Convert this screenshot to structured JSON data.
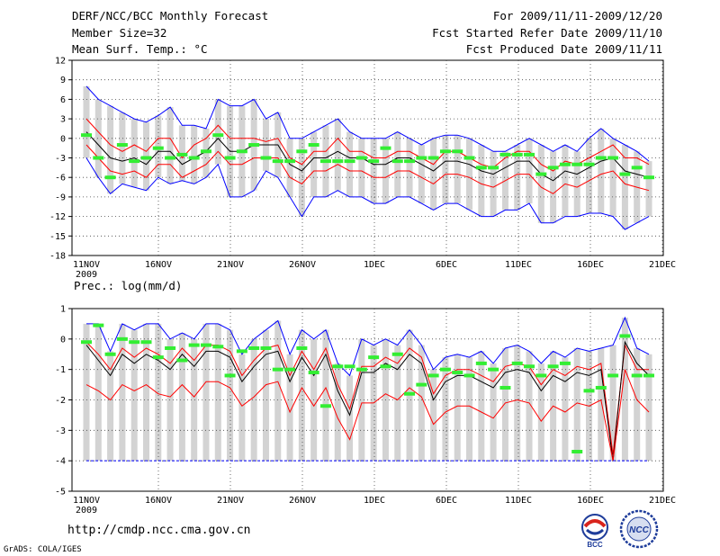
{
  "header": {
    "title": "DERF/NCC/BCC Monthly Forecast",
    "member_size": "Member Size=32",
    "variable": "Mean Surf. Temp.: °C",
    "period": "For 2009/11/11-2009/12/20",
    "started": "Fcst Started Refer Date 2009/11/10",
    "produced": "Fcst Produced Date 2009/11/11"
  },
  "footer": {
    "url": "http://cmdp.ncc.cma.gov.cn",
    "grads": "GrADS: COLA/IGES",
    "logo_bcc": "BCC",
    "logo_ncc": "NCC"
  },
  "colors": {
    "max": "#0000ff",
    "min": "#0000ff",
    "mean": "#000000",
    "band": "#ff0000",
    "obs": "#33ee33",
    "box": "#d3d3d3"
  },
  "chart_data": [
    {
      "type": "line",
      "title": "Mean Surf. Temp.: °C",
      "x_tick_labels": [
        "11NOV",
        "16NOV",
        "21NOV",
        "26NOV",
        "1DEC",
        "6DEC",
        "11DEC",
        "16DEC",
        "21DEC"
      ],
      "x_year_label": "2009",
      "ylim": [
        -18,
        12
      ],
      "yticks": [
        12,
        9,
        6,
        3,
        0,
        -3,
        -6,
        -9,
        -12,
        -15,
        -18
      ],
      "series": [
        {
          "name": "max",
          "color": "#0000ff",
          "values": [
            8,
            6,
            5,
            4,
            3,
            2.5,
            3.5,
            4.8,
            2,
            2,
            1.5,
            6,
            5,
            5,
            6,
            3,
            4,
            0,
            0,
            1,
            2,
            3,
            1,
            0,
            0,
            0,
            1,
            0,
            -1,
            0,
            0.5,
            0.5,
            0,
            -1,
            -2,
            -2,
            -1,
            0,
            -1,
            -2,
            -1,
            -2,
            0,
            1.5,
            0,
            -1,
            -2,
            -3.5
          ]
        },
        {
          "name": "upper",
          "color": "#ff0000",
          "values": [
            3,
            1,
            -1,
            -2,
            -1,
            -2,
            0,
            0,
            -3,
            -1,
            0,
            2,
            0,
            0,
            0,
            -0.5,
            0,
            -3,
            -4,
            -2,
            -2,
            0,
            -2,
            -2,
            -3,
            -3,
            -2,
            -2,
            -3,
            -4,
            -2,
            -2,
            -3,
            -4,
            -4.5,
            -3,
            -2,
            -2,
            -4,
            -5,
            -3.5,
            -4,
            -3,
            -2,
            -1,
            -3,
            -3,
            -4
          ]
        },
        {
          "name": "mean",
          "color": "#000000",
          "values": [
            1,
            -1,
            -3,
            -3.5,
            -3,
            -4,
            -2,
            -2,
            -4,
            -3,
            -2,
            0,
            -2,
            -2,
            -1,
            -1,
            -1,
            -4,
            -5,
            -3,
            -3,
            -2,
            -3,
            -3,
            -4,
            -4,
            -3,
            -3,
            -4,
            -5,
            -3.5,
            -3.5,
            -4,
            -5,
            -5.5,
            -4.5,
            -3.5,
            -3.5,
            -5.5,
            -6.5,
            -5,
            -5.5,
            -4.5,
            -3.5,
            -3,
            -5,
            -5.5,
            -6
          ]
        },
        {
          "name": "lower",
          "color": "#ff0000",
          "values": [
            -1,
            -3,
            -5,
            -5.5,
            -5,
            -6,
            -4,
            -4,
            -6,
            -5,
            -4,
            -2,
            -4,
            -4,
            -3,
            -3,
            -3,
            -6,
            -7,
            -5,
            -5,
            -4,
            -5,
            -5,
            -6,
            -6,
            -5,
            -5,
            -6,
            -7,
            -5.5,
            -5.5,
            -6,
            -7,
            -7.5,
            -6.5,
            -5.5,
            -5.5,
            -7.5,
            -8.5,
            -7,
            -7.5,
            -6.5,
            -5.5,
            -5,
            -7,
            -7.5,
            -8
          ]
        },
        {
          "name": "min",
          "color": "#0000ff",
          "values": [
            -3,
            -6,
            -8.5,
            -7,
            -7.5,
            -8,
            -6,
            -7,
            -6.5,
            -7,
            -6,
            -4,
            -9,
            -9,
            -8,
            -5,
            -6,
            -9,
            -12,
            -9,
            -9,
            -8,
            -9,
            -9,
            -10,
            -10,
            -9,
            -9,
            -10,
            -11,
            -10,
            -10,
            -11,
            -12,
            -12,
            -11,
            -11,
            -10,
            -13,
            -13,
            -12,
            -12,
            -11.5,
            -11.5,
            -12,
            -14,
            -13,
            -12
          ]
        },
        {
          "name": "observed",
          "color": "#33ee33",
          "values": [
            0.5,
            -3,
            -6,
            -1,
            -3.5,
            -3,
            -1.5,
            -3,
            -2.5,
            -3,
            -2,
            0.5,
            -3,
            -2,
            -1,
            -3,
            -3.5,
            -3.5,
            -2,
            -1,
            -3.5,
            -3.5,
            -3.5,
            -3,
            -3.5,
            -1.5,
            -3.5,
            -3.5,
            -3,
            -3,
            -2,
            -2,
            -3,
            -4.5,
            -4.5,
            -2.5,
            -2.5,
            -2.5,
            -5.5,
            -4.5,
            -4,
            -4,
            -4,
            -3,
            -3,
            -5.5,
            -4.5,
            -6
          ]
        }
      ]
    },
    {
      "type": "line",
      "title": "Prec.: log(mm/d)",
      "x_tick_labels": [
        "11NOV",
        "16NOV",
        "21NOV",
        "26NOV",
        "1DEC",
        "6DEC",
        "11DEC",
        "16DEC",
        "21DEC"
      ],
      "x_year_label": "2009",
      "ylim": [
        -5,
        1
      ],
      "yticks": [
        1,
        0,
        -1,
        -2,
        -3,
        -4,
        -5
      ],
      "series": [
        {
          "name": "max",
          "color": "#0000ff",
          "values": [
            0.5,
            0.5,
            -0.4,
            0.5,
            0.3,
            0.5,
            0.5,
            0,
            0.2,
            0,
            0.5,
            0.5,
            0.3,
            -0.5,
            0,
            0.3,
            0.6,
            -0.5,
            0.3,
            0,
            0.3,
            -0.8,
            -1.2,
            0,
            -0.2,
            0,
            -0.2,
            0.3,
            -0.2,
            -1,
            -0.6,
            -0.5,
            -0.6,
            -0.4,
            -0.8,
            -0.3,
            -0.2,
            -0.4,
            -0.8,
            -0.4,
            -0.6,
            -0.3,
            -0.4,
            -0.3,
            -0.2,
            0.7,
            -0.3,
            -0.5
          ]
        },
        {
          "name": "upper",
          "color": "#ff0000",
          "values": [
            -0.1,
            -0.5,
            -1,
            -0.3,
            -0.6,
            -0.3,
            -0.5,
            -0.8,
            -0.3,
            -0.7,
            -0.2,
            -0.2,
            -0.4,
            -1.2,
            -0.7,
            -0.3,
            -0.2,
            -1.2,
            -0.4,
            -1,
            -0.3,
            -1.5,
            -2.3,
            -0.9,
            -0.9,
            -0.6,
            -0.8,
            -0.3,
            -0.6,
            -1.8,
            -1.2,
            -1,
            -1,
            -1.2,
            -1.4,
            -0.9,
            -0.8,
            -0.9,
            -1.5,
            -1,
            -1.2,
            -0.9,
            -1,
            -0.8,
            -3.8,
            -0.2,
            -1,
            -1
          ]
        },
        {
          "name": "mean",
          "color": "#000000",
          "values": [
            -0.2,
            -0.7,
            -1.2,
            -0.5,
            -0.8,
            -0.5,
            -0.7,
            -1,
            -0.5,
            -0.9,
            -0.4,
            -0.4,
            -0.6,
            -1.4,
            -0.9,
            -0.5,
            -0.4,
            -1.4,
            -0.6,
            -1.2,
            -0.5,
            -1.7,
            -2.5,
            -1.1,
            -1.1,
            -0.8,
            -1,
            -0.5,
            -0.8,
            -2,
            -1.4,
            -1.2,
            -1.2,
            -1.4,
            -1.6,
            -1.1,
            -1,
            -1.1,
            -1.7,
            -1.2,
            -1.4,
            -1.1,
            -1.2,
            -1,
            -4,
            -0.1,
            -0.8,
            -1.2
          ]
        },
        {
          "name": "lower",
          "color": "#ff0000",
          "values": [
            -1.5,
            -1.7,
            -2,
            -1.5,
            -1.7,
            -1.5,
            -1.8,
            -1.9,
            -1.5,
            -1.9,
            -1.4,
            -1.4,
            -1.6,
            -2.2,
            -1.9,
            -1.5,
            -1.4,
            -2.4,
            -1.6,
            -2.2,
            -1.6,
            -2.6,
            -3.3,
            -2.1,
            -2.1,
            -1.8,
            -2,
            -1.6,
            -1.9,
            -2.8,
            -2.4,
            -2.2,
            -2.2,
            -2.4,
            -2.6,
            -2.1,
            -2,
            -2.1,
            -2.7,
            -2.2,
            -2.4,
            -2.1,
            -2.2,
            -2,
            -4,
            -1,
            -2,
            -2.4
          ]
        },
        {
          "name": "min",
          "color": "#0000ff",
          "values": [
            -4,
            -4,
            -4,
            -4,
            -4,
            -4,
            -4,
            -4,
            -4,
            -4,
            -4,
            -4,
            -4,
            -4,
            -4,
            -4,
            -4,
            -4,
            -4,
            -4,
            -4,
            -4,
            -4,
            -4,
            -4,
            -4,
            -4,
            -4,
            -4,
            -4,
            -4,
            -4,
            -4,
            -4,
            -4,
            -4,
            -4,
            -4,
            -4,
            -4,
            -4,
            -4,
            -4,
            -4,
            -4,
            -4,
            -4,
            -4
          ]
        },
        {
          "name": "observed",
          "color": "#33ee33",
          "values": [
            -0.1,
            0.45,
            -0.5,
            0,
            -0.1,
            -0.1,
            -0.6,
            -0.3,
            -0.7,
            -0.2,
            -0.2,
            -0.25,
            -1.2,
            -0.4,
            -0.3,
            -0.3,
            -1,
            -1,
            -0.3,
            -1.1,
            -2.2,
            -0.9,
            -0.9,
            -1,
            -0.6,
            -0.9,
            -0.5,
            -1.8,
            -1.5,
            -1.2,
            -1,
            -1.1,
            -1.2,
            -0.8,
            -1,
            -1.6,
            -0.8,
            -0.9,
            -1.2,
            -0.9,
            -0.8,
            -3.7,
            -1.7,
            -1.6,
            -1.2,
            0.1,
            -1.2,
            -1.2
          ]
        }
      ]
    }
  ]
}
